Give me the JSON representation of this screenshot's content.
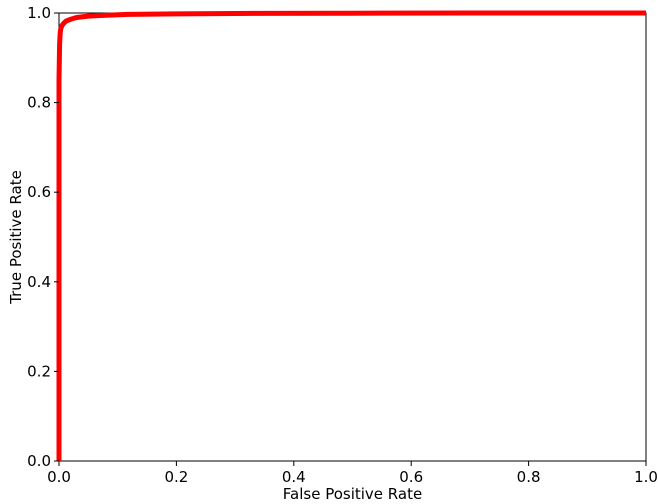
{
  "chart_data": {
    "type": "line",
    "title": "",
    "xlabel": "False Positive Rate",
    "ylabel": "True Positive Rate",
    "xlim": [
      0.0,
      1.0
    ],
    "ylim": [
      0.0,
      1.0
    ],
    "xticks": [
      "0.0",
      "0.2",
      "0.4",
      "0.6",
      "0.8",
      "1.0"
    ],
    "yticks": [
      "0.0",
      "0.2",
      "0.4",
      "0.6",
      "0.8",
      "1.0"
    ],
    "grid": false,
    "legend": "none",
    "series": [
      {
        "color": "#ff0000",
        "x": [
          0.0,
          0.0,
          0.001,
          0.002,
          0.003,
          0.005,
          0.008,
          0.012,
          0.02,
          0.03,
          0.05,
          0.08,
          0.12,
          0.2,
          0.3,
          0.5,
          0.7,
          1.0
        ],
        "y": [
          0.0,
          0.85,
          0.93,
          0.955,
          0.965,
          0.972,
          0.977,
          0.982,
          0.986,
          0.99,
          0.993,
          0.995,
          0.997,
          0.998,
          0.999,
          0.9995,
          1.0,
          1.0
        ]
      }
    ]
  }
}
